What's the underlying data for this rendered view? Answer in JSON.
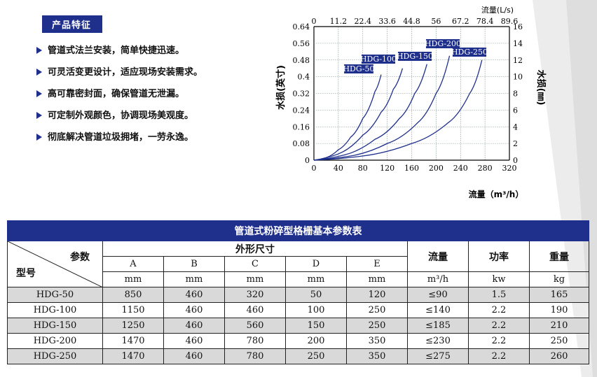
{
  "features": {
    "title": "产品特征",
    "items": [
      "管道式法兰安装，简单快捷迅速。",
      "可灵活变更设计，适应现场安装需求。",
      "高可靠密封面，确保管道无泄漏。",
      "可定制外观颜色，协调现场美观度。",
      "彻底解决管道垃圾拥堵，一劳永逸。"
    ]
  },
  "chart_data": {
    "type": "line",
    "x_bottom": {
      "label": "流量（m³/h）",
      "ticks": [
        "0",
        "40",
        "80",
        "120",
        "160",
        "200",
        "240",
        "280",
        "320"
      ],
      "range": [
        0,
        320
      ]
    },
    "x_top": {
      "label": "流量(L/s)",
      "ticks": [
        "0",
        "11.2",
        "22.4",
        "33.6",
        "44.8",
        "56",
        "67.2",
        "78.4",
        "89.6"
      ],
      "range": [
        0,
        89.6
      ]
    },
    "y_left": {
      "label": "水损(英寸)",
      "ticks": [
        "0",
        "0.08",
        "0.16",
        "0.24",
        "0.32",
        "0.4",
        "0.48",
        "0.56",
        "0.64"
      ],
      "range": [
        0,
        0.64
      ]
    },
    "y_right": {
      "label": "水损(㎜)",
      "ticks": [
        "0",
        "2",
        "4",
        "6",
        "8",
        "10",
        "12",
        "14",
        "16"
      ],
      "range": [
        0,
        16
      ]
    },
    "grid": true,
    "series": [
      {
        "name": "HDG-50",
        "x": [
          0,
          20,
          40,
          60,
          80,
          100,
          110
        ],
        "y": [
          0,
          0.012,
          0.05,
          0.11,
          0.2,
          0.33,
          0.41
        ]
      },
      {
        "name": "HDG-100",
        "x": [
          0,
          40,
          80,
          110,
          130,
          145
        ],
        "y": [
          0,
          0.03,
          0.12,
          0.23,
          0.34,
          0.44
        ]
      },
      {
        "name": "HDG-150",
        "x": [
          0,
          50,
          100,
          140,
          165,
          185
        ],
        "y": [
          0,
          0.025,
          0.1,
          0.2,
          0.32,
          0.46
        ]
      },
      {
        "name": "HDG-200",
        "x": [
          0,
          60,
          120,
          170,
          200,
          222
        ],
        "y": [
          0,
          0.02,
          0.08,
          0.18,
          0.32,
          0.5
        ]
      },
      {
        "name": "HDG-250",
        "x": [
          0,
          80,
          160,
          220,
          255,
          275
        ],
        "y": [
          0,
          0.02,
          0.08,
          0.18,
          0.32,
          0.48
        ]
      }
    ]
  },
  "table": {
    "title": "管道式粉碎型格栅基本参数表",
    "param_label": "参数",
    "model_label": "型号",
    "dims_label": "外形尺寸",
    "dim_cols": [
      "A",
      "B",
      "C",
      "D",
      "E"
    ],
    "dim_unit": "mm",
    "flow_label": "流量",
    "flow_unit": "m³/h",
    "power_label": "功率",
    "power_unit": "kw",
    "weight_label": "重量",
    "weight_unit": "kg",
    "rows": [
      {
        "model": "HDG-50",
        "a": "850",
        "b": "460",
        "c": "320",
        "d": "50",
        "e": "120",
        "flow": "≤90",
        "power": "1.5",
        "weight": "165"
      },
      {
        "model": "HDG-100",
        "a": "1150",
        "b": "460",
        "c": "460",
        "d": "100",
        "e": "250",
        "flow": "≤140",
        "power": "2.2",
        "weight": "190"
      },
      {
        "model": "HDG-150",
        "a": "1250",
        "b": "460",
        "c": "560",
        "d": "150",
        "e": "250",
        "flow": "≤185",
        "power": "2.2",
        "weight": "210"
      },
      {
        "model": "HDG-200",
        "a": "1470",
        "b": "460",
        "c": "780",
        "d": "200",
        "e": "350",
        "flow": "≤230",
        "power": "2.2",
        "weight": "250"
      },
      {
        "model": "HDG-250",
        "a": "1470",
        "b": "460",
        "c": "780",
        "d": "250",
        "e": "350",
        "flow": "≤275",
        "power": "2.2",
        "weight": "260"
      }
    ]
  },
  "colors": {
    "brand": "#1f2f8c",
    "curve": "#1f2f8c",
    "row_alt": "#d9d9d9"
  }
}
